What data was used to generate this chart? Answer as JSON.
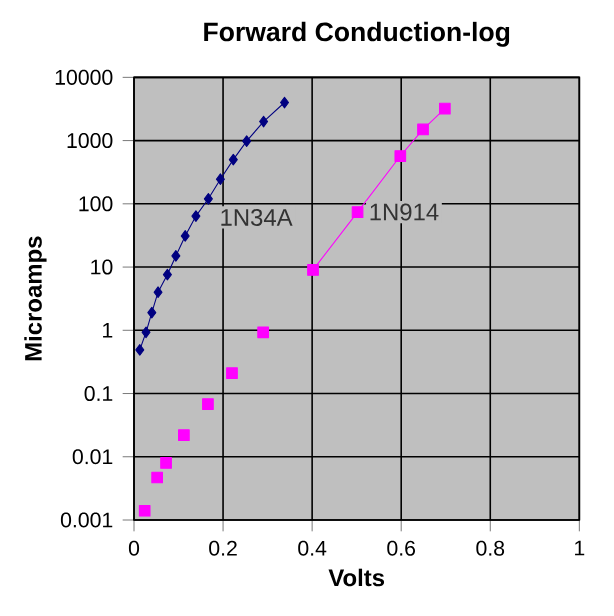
{
  "chart_data": {
    "type": "line",
    "title": "Forward Conduction-log",
    "xlabel": "Volts",
    "ylabel": "Microamps",
    "log": "y",
    "grid": true,
    "legend": false,
    "xlim": [
      0,
      1
    ],
    "xticks": [
      0,
      0.2,
      0.4,
      0.6,
      0.8,
      1
    ],
    "ylim": [
      0.001,
      10000
    ],
    "yticks": [
      0.001,
      0.01,
      0.1,
      1,
      10,
      100,
      1000,
      10000
    ],
    "series": [
      {
        "name": "1N34A",
        "type": "line",
        "color": "#000080",
        "marker": "diamond",
        "x": [
          0.013,
          0.027,
          0.04,
          0.054,
          0.075,
          0.094,
          0.115,
          0.139,
          0.167,
          0.194,
          0.223,
          0.253,
          0.291,
          0.338
        ],
        "values": [
          0.49,
          0.93,
          1.9,
          4,
          7.6,
          15,
          31,
          64,
          120,
          245,
          500,
          980,
          2000,
          4000
        ]
      },
      {
        "type": "scatter",
        "color": "#ff00ff",
        "marker": "square",
        "x": [
          0.024,
          0.052,
          0.072,
          0.112,
          0.166,
          0.22,
          0.29
        ],
        "values": [
          0.0014,
          0.0047,
          0.008,
          0.022,
          0.068,
          0.21,
          0.93
        ]
      },
      {
        "name": "1N914",
        "type": "line",
        "color": "#ff00ff",
        "marker": "square",
        "x": [
          0.402,
          0.502,
          0.598,
          0.649,
          0.698
        ],
        "values": [
          9,
          74,
          570,
          1500,
          3200
        ]
      }
    ]
  }
}
